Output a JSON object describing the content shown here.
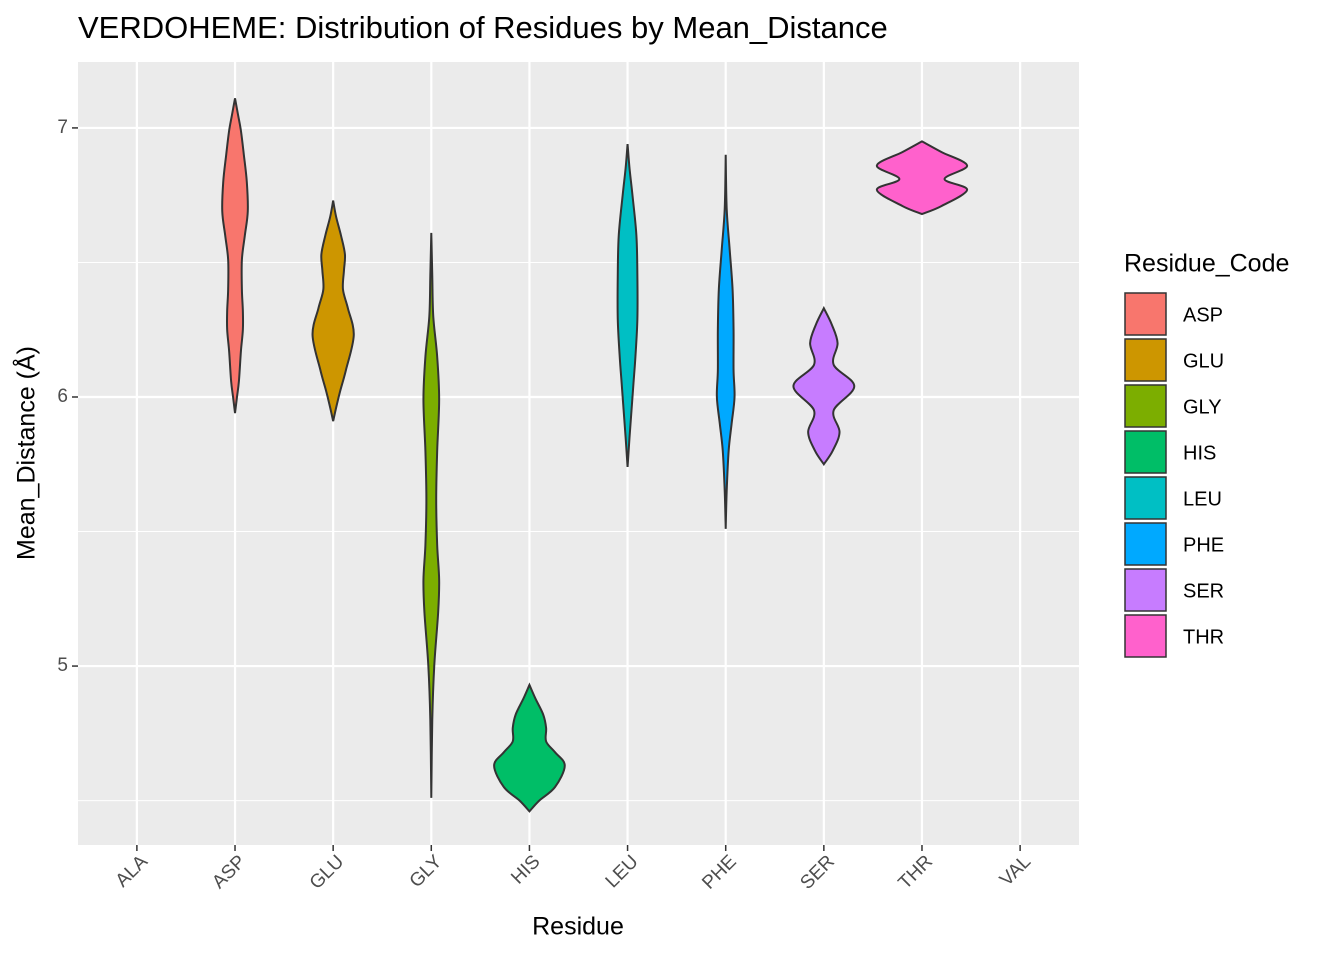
{
  "chart_data": {
    "type": "violin",
    "title": "VERDOHEME: Distribution of Residues by Mean_Distance",
    "x_label": "Residue",
    "y_label": "Mean_Distance (Å)",
    "legend_title": "Residue_Code",
    "legend_position": "right",
    "categories": [
      "ALA",
      "ASP",
      "GLU",
      "GLY",
      "HIS",
      "LEU",
      "PHE",
      "SER",
      "THR",
      "VAL"
    ],
    "ylim": [
      4.335,
      7.245
    ],
    "yticks": [
      5,
      6,
      7
    ],
    "yminor": [
      4.5,
      5.5,
      6.5
    ],
    "grid": true,
    "series": [
      {
        "name": "ASP",
        "color": "#F8766D",
        "y": [
          5.94,
          6.0,
          6.06,
          6.17,
          6.25,
          6.32,
          6.4,
          6.51,
          6.6,
          6.69,
          6.8,
          6.9,
          6.99,
          7.05,
          7.11
        ],
        "half_width": [
          0,
          0.02,
          0.04,
          0.06,
          0.08,
          0.08,
          0.07,
          0.07,
          0.1,
          0.13,
          0.12,
          0.09,
          0.06,
          0.03,
          0
        ]
      },
      {
        "name": "GLU",
        "color": "#CD9600",
        "y": [
          5.91,
          5.96,
          6.02,
          6.1,
          6.23,
          6.33,
          6.4,
          6.47,
          6.53,
          6.6,
          6.67,
          6.73
        ],
        "half_width": [
          0,
          0.03,
          0.07,
          0.13,
          0.21,
          0.15,
          0.1,
          0.11,
          0.12,
          0.08,
          0.03,
          0
        ]
      },
      {
        "name": "GLY",
        "color": "#7CAE00",
        "y": [
          4.51,
          4.8,
          5.0,
          5.2,
          5.32,
          5.45,
          5.62,
          5.8,
          5.99,
          6.15,
          6.3,
          6.45,
          6.61
        ],
        "half_width": [
          0,
          0.01,
          0.03,
          0.07,
          0.08,
          0.06,
          0.05,
          0.06,
          0.08,
          0.06,
          0.02,
          0.01,
          0
        ]
      },
      {
        "name": "HIS",
        "color": "#00BE67",
        "y": [
          4.46,
          4.5,
          4.55,
          4.63,
          4.68,
          4.72,
          4.77,
          4.82,
          4.88,
          4.93
        ],
        "half_width": [
          0,
          0.1,
          0.26,
          0.36,
          0.26,
          0.17,
          0.17,
          0.14,
          0.06,
          0
        ]
      },
      {
        "name": "LEU",
        "color": "#00BFC4",
        "y": [
          5.74,
          5.85,
          5.95,
          6.05,
          6.15,
          6.29,
          6.45,
          6.6,
          6.75,
          6.85,
          6.94
        ],
        "half_width": [
          0,
          0.02,
          0.04,
          0.06,
          0.08,
          0.1,
          0.1,
          0.09,
          0.05,
          0.02,
          0
        ]
      },
      {
        "name": "PHE",
        "color": "#00A9FF",
        "y": [
          5.51,
          5.65,
          5.8,
          5.9,
          6.0,
          6.1,
          6.25,
          6.4,
          6.55,
          6.7,
          6.9
        ],
        "half_width": [
          0,
          0.01,
          0.03,
          0.06,
          0.09,
          0.08,
          0.08,
          0.07,
          0.04,
          0.01,
          0
        ]
      },
      {
        "name": "SER",
        "color": "#C77CFF",
        "y": [
          5.75,
          5.8,
          5.87,
          5.95,
          6.04,
          6.12,
          6.2,
          6.27,
          6.33
        ],
        "half_width": [
          0,
          0.09,
          0.16,
          0.1,
          0.31,
          0.1,
          0.14,
          0.08,
          0
        ]
      },
      {
        "name": "THR",
        "color": "#FF61CC",
        "y": [
          6.68,
          6.71,
          6.77,
          6.81,
          6.86,
          6.91,
          6.95
        ],
        "half_width": [
          0,
          0.2,
          0.46,
          0.23,
          0.46,
          0.2,
          0
        ]
      }
    ]
  }
}
